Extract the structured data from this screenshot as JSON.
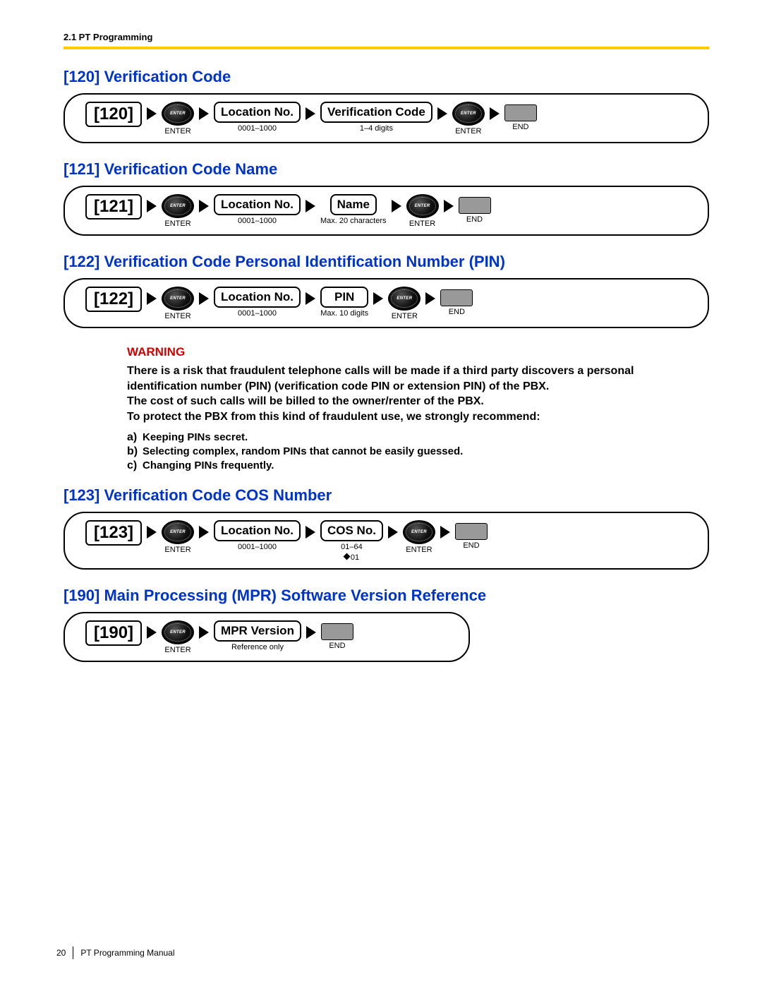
{
  "header": "2.1 PT Programming",
  "footer": {
    "page": "20",
    "title": "PT Programming Manual"
  },
  "enter_label": "ENTER",
  "end_label": "END",
  "location_label": "Location No.",
  "location_range": "0001–1000",
  "sections": {
    "s120": {
      "title": "[120] Verification Code",
      "code": "[120]",
      "field_label": "Verification Code",
      "field_sub": "1–4 digits"
    },
    "s121": {
      "title": "[121] Verification Code Name",
      "code": "[121]",
      "field_label": "Name",
      "field_sub": "Max. 20 characters"
    },
    "s122": {
      "title": "[122] Verification Code Personal Identification Number (PIN)",
      "code": "[122]",
      "field_label": "PIN",
      "field_sub": "Max. 10 digits"
    },
    "s123": {
      "title": "[123] Verification Code COS Number",
      "code": "[123]",
      "field_label": "COS No.",
      "field_sub": "01–64",
      "field_default": "01"
    },
    "s190": {
      "title": "[190] Main Processing (MPR) Software Version Reference",
      "code": "[190]",
      "field_label": "MPR Version",
      "field_sub": "Reference only"
    }
  },
  "warning": {
    "title": "WARNING",
    "body": "There is a risk that fraudulent telephone calls will be made if a third party discovers a personal identification number (PIN) (verification code PIN or extension PIN) of the PBX.\nThe cost of such calls will be billed to the owner/renter of the PBX.\nTo protect the PBX from this kind of fraudulent use, we strongly recommend:",
    "items": {
      "a": "Keeping PINs secret.",
      "b": "Selecting complex, random PINs that cannot be easily guessed.",
      "c": "Changing PINs frequently."
    }
  }
}
